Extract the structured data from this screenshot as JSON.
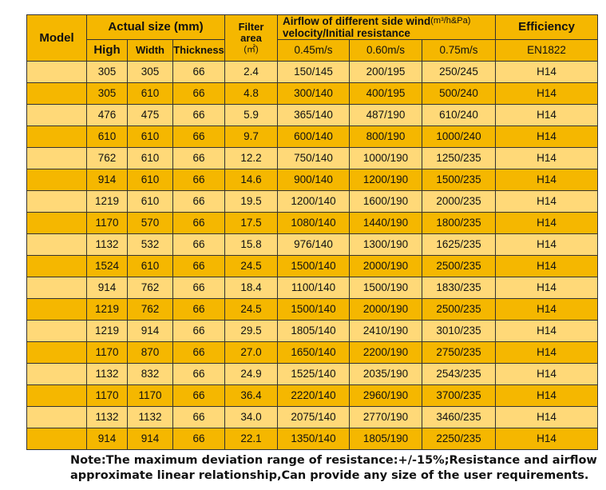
{
  "header": {
    "model": "Model",
    "actual_size": "Actual size (mm)",
    "high": "High",
    "width": "Width",
    "thickness": "Thickness",
    "filter_area_line1": "Filter",
    "filter_area_line2": "area",
    "filter_area_unit": "(㎡)",
    "airflow_title_line1": "Airflow of different side wind",
    "airflow_unit": "(m³/h&Pa)",
    "airflow_title_line2": "velocity/Initial resistance",
    "velocity_1": "0.45m/s",
    "velocity_2": "0.60m/s",
    "velocity_3": "0.75m/s",
    "efficiency": "Efficiency",
    "standard": "EN1822"
  },
  "rows": [
    {
      "model": "",
      "high": "305",
      "width": "305",
      "thickness": "66",
      "area": "2.4",
      "v1": "150/145",
      "v2": "200/195",
      "v3": "250/245",
      "eff": "H14"
    },
    {
      "model": "",
      "high": "305",
      "width": "610",
      "thickness": "66",
      "area": "4.8",
      "v1": "300/140",
      "v2": "400/195",
      "v3": "500/240",
      "eff": "H14"
    },
    {
      "model": "",
      "high": "476",
      "width": "475",
      "thickness": "66",
      "area": "5.9",
      "v1": "365/140",
      "v2": "487/190",
      "v3": "610/240",
      "eff": "H14"
    },
    {
      "model": "",
      "high": "610",
      "width": "610",
      "thickness": "66",
      "area": "9.7",
      "v1": "600/140",
      "v2": "800/190",
      "v3": "1000/240",
      "eff": "H14"
    },
    {
      "model": "",
      "high": "762",
      "width": "610",
      "thickness": "66",
      "area": "12.2",
      "v1": "750/140",
      "v2": "1000/190",
      "v3": "1250/235",
      "eff": "H14"
    },
    {
      "model": "",
      "high": "914",
      "width": "610",
      "thickness": "66",
      "area": "14.6",
      "v1": "900/140",
      "v2": "1200/190",
      "v3": "1500/235",
      "eff": "H14"
    },
    {
      "model": "",
      "high": "1219",
      "width": "610",
      "thickness": "66",
      "area": "19.5",
      "v1": "1200/140",
      "v2": "1600/190",
      "v3": "2000/235",
      "eff": "H14"
    },
    {
      "model": "",
      "high": "1170",
      "width": "570",
      "thickness": "66",
      "area": "17.5",
      "v1": "1080/140",
      "v2": "1440/190",
      "v3": "1800/235",
      "eff": "H14"
    },
    {
      "model": "",
      "high": "1132",
      "width": "532",
      "thickness": "66",
      "area": "15.8",
      "v1": "976/140",
      "v2": "1300/190",
      "v3": "1625/235",
      "eff": "H14"
    },
    {
      "model": "",
      "high": "1524",
      "width": "610",
      "thickness": "66",
      "area": "24.5",
      "v1": "1500/140",
      "v2": "2000/190",
      "v3": "2500/235",
      "eff": "H14"
    },
    {
      "model": "",
      "high": "914",
      "width": "762",
      "thickness": "66",
      "area": "18.4",
      "v1": "1100/140",
      "v2": "1500/190",
      "v3": "1830/235",
      "eff": "H14"
    },
    {
      "model": "",
      "high": "1219",
      "width": "762",
      "thickness": "66",
      "area": "24.5",
      "v1": "1500/140",
      "v2": "2000/190",
      "v3": "2500/235",
      "eff": "H14"
    },
    {
      "model": "",
      "high": "1219",
      "width": "914",
      "thickness": "66",
      "area": "29.5",
      "v1": "1805/140",
      "v2": "2410/190",
      "v3": "3010/235",
      "eff": "H14"
    },
    {
      "model": "",
      "high": "1170",
      "width": "870",
      "thickness": "66",
      "area": "27.0",
      "v1": "1650/140",
      "v2": "2200/190",
      "v3": "2750/235",
      "eff": "H14"
    },
    {
      "model": "",
      "high": "1132",
      "width": "832",
      "thickness": "66",
      "area": "24.9",
      "v1": "1525/140",
      "v2": "2035/190",
      "v3": "2543/235",
      "eff": "H14"
    },
    {
      "model": "",
      "high": "1170",
      "width": "1170",
      "thickness": "66",
      "area": "36.4",
      "v1": "2220/140",
      "v2": "2960/190",
      "v3": "3700/235",
      "eff": "H14"
    },
    {
      "model": "",
      "high": "1132",
      "width": "1132",
      "thickness": "66",
      "area": "34.0",
      "v1": "2075/140",
      "v2": "2770/190",
      "v3": "3460/235",
      "eff": "H14"
    },
    {
      "model": "",
      "high": "914",
      "width": "914",
      "thickness": "66",
      "area": "22.1",
      "v1": "1350/140",
      "v2": "1805/190",
      "v3": "2250/235",
      "eff": "H14"
    }
  ],
  "note": {
    "line1": "Note:The maximum deviation range of resistance:+/-15%;Resistance and airflow",
    "line2": "approximate linear relationship,Can provide any size of the user requirements."
  },
  "colors": {
    "header_bg": "#f5b700",
    "row_light": "#ffd978",
    "row_dark": "#f5b700",
    "border": "#333333"
  }
}
